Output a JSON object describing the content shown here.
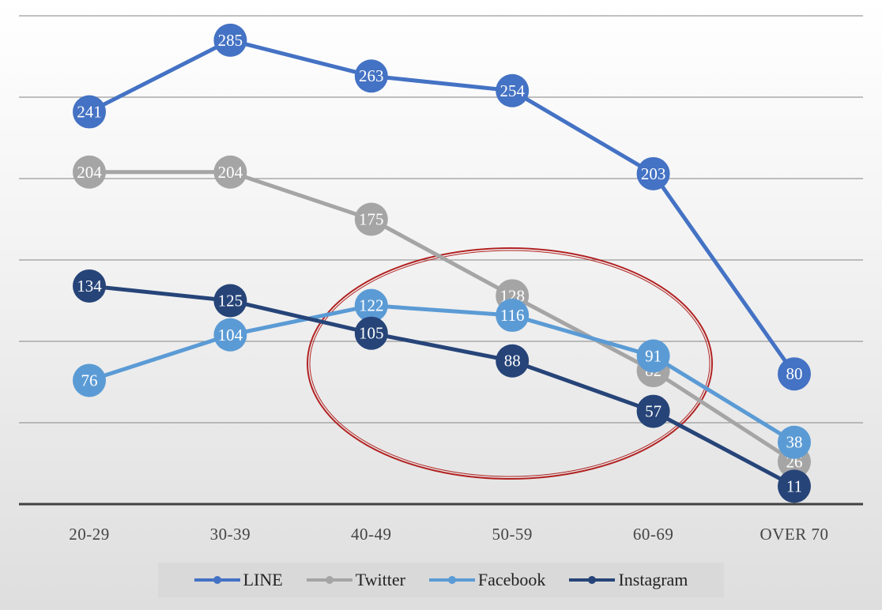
{
  "chart_data": {
    "type": "line",
    "categories": [
      "20-29",
      "30-39",
      "40-49",
      "50-59",
      "60-69",
      "OVER 70"
    ],
    "series": [
      {
        "name": "LINE",
        "color": "#4472c4",
        "values": [
          241,
          285,
          263,
          254,
          203,
          80
        ]
      },
      {
        "name": "Twitter",
        "color": "#a5a5a5",
        "values": [
          204,
          204,
          175,
          128,
          82,
          26
        ]
      },
      {
        "name": "Facebook",
        "color": "#5b9bd5",
        "values": [
          76,
          104,
          122,
          116,
          91,
          38
        ]
      },
      {
        "name": "Instagram",
        "color": "#264478",
        "values": [
          134,
          125,
          105,
          88,
          57,
          11
        ]
      }
    ],
    "title": "",
    "xlabel": "",
    "ylabel": "",
    "ylim": [
      0,
      300
    ],
    "grid": true,
    "legend": "bottom",
    "highlight_ellipse_color": "#b22222"
  }
}
